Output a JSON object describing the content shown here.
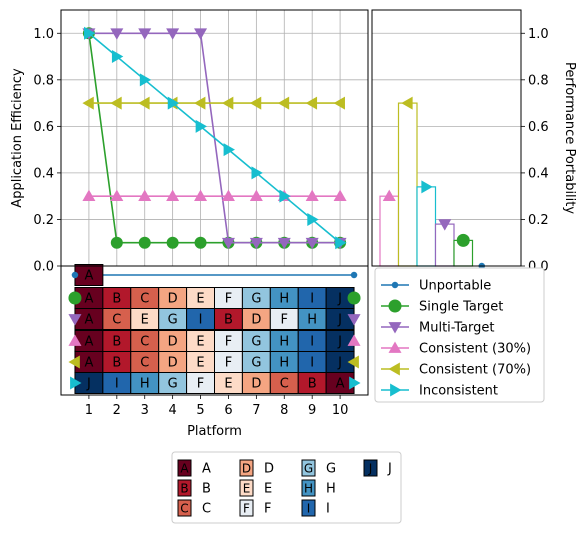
{
  "chart_data": [
    {
      "type": "line",
      "xlabel": "",
      "ylabel": "Application Efficiency",
      "x": [
        1,
        2,
        3,
        4,
        5,
        6,
        7,
        8,
        9,
        10
      ],
      "xlim": [
        0,
        11
      ],
      "ylim": [
        0,
        1.1
      ],
      "yticks": [
        0.0,
        0.2,
        0.4,
        0.6,
        0.8,
        1.0
      ],
      "grid": true,
      "series": [
        {
          "name": "Unportable",
          "color": "#1f77b4",
          "marker": "circle-small",
          "values": [
            1.0,
            null,
            null,
            null,
            null,
            null,
            null,
            null,
            null,
            null
          ]
        },
        {
          "name": "Single Target",
          "color": "#2ca02c",
          "marker": "circle",
          "values": [
            1.0,
            0.1,
            0.1,
            0.1,
            0.1,
            0.1,
            0.1,
            0.1,
            0.1,
            0.1
          ]
        },
        {
          "name": "Multi-Target",
          "color": "#9467bd",
          "marker": "triangle-down",
          "values": [
            1.0,
            1.0,
            1.0,
            1.0,
            1.0,
            0.1,
            0.1,
            0.1,
            0.1,
            0.1
          ]
        },
        {
          "name": "Consistent (30%)",
          "color": "#e377c2",
          "marker": "triangle-up",
          "values": [
            0.3,
            0.3,
            0.3,
            0.3,
            0.3,
            0.3,
            0.3,
            0.3,
            0.3,
            0.3
          ]
        },
        {
          "name": "Consistent (70%)",
          "color": "#bcbd22",
          "marker": "triangle-left",
          "values": [
            0.7,
            0.7,
            0.7,
            0.7,
            0.7,
            0.7,
            0.7,
            0.7,
            0.7,
            0.7
          ]
        },
        {
          "name": "Inconsistent",
          "color": "#17becf",
          "marker": "triangle-right",
          "values": [
            1.0,
            0.9,
            0.8,
            0.7,
            0.6,
            0.5,
            0.4,
            0.3,
            0.2,
            0.1
          ]
        }
      ]
    },
    {
      "type": "bar",
      "ylabel": "Performance Portability",
      "ylim": [
        0,
        1.1
      ],
      "yticks": [
        0.0,
        0.2,
        0.4,
        0.6,
        0.8,
        1.0
      ],
      "grid": true,
      "categories": [
        "Unportable",
        "Single Target",
        "Multi-Target",
        "Consistent (30%)",
        "Consistent (70%)",
        "Inconsistent"
      ],
      "values": [
        0.0,
        0.11,
        0.18,
        0.3,
        0.7,
        0.34
      ]
    },
    {
      "type": "heatmap",
      "xlabel": "Platform",
      "xticks": [
        "1",
        "2",
        "3",
        "4",
        "5",
        "6",
        "7",
        "8",
        "9",
        "10"
      ],
      "rows": [
        {
          "series": "Unportable",
          "cells": [
            "A",
            null,
            null,
            null,
            null,
            null,
            null,
            null,
            null,
            null
          ]
        },
        {
          "series": "Single Target",
          "cells": [
            "A",
            "B",
            "C",
            "D",
            "E",
            "F",
            "G",
            "H",
            "I",
            "J"
          ]
        },
        {
          "series": "Multi-Target",
          "cells": [
            "A",
            "C",
            "E",
            "G",
            "I",
            "B",
            "D",
            "F",
            "H",
            "J"
          ]
        },
        {
          "series": "Consistent (30%)",
          "cells": [
            "A",
            "B",
            "C",
            "D",
            "E",
            "F",
            "G",
            "H",
            "I",
            "J"
          ]
        },
        {
          "series": "Consistent (70%)",
          "cells": [
            "A",
            "B",
            "C",
            "D",
            "E",
            "F",
            "G",
            "H",
            "I",
            "J"
          ]
        },
        {
          "series": "Inconsistent",
          "cells": [
            "J",
            "I",
            "H",
            "G",
            "F",
            "E",
            "D",
            "C",
            "B",
            "A"
          ]
        }
      ]
    }
  ],
  "legend": {
    "placement": "right of matrix",
    "entries": [
      "Unportable",
      "Single Target",
      "Multi-Target",
      "Consistent (30%)",
      "Consistent (70%)",
      "Inconsistent"
    ]
  },
  "code_legend": {
    "placement": "bottom-center",
    "entries": [
      {
        "code": "A",
        "label": "A",
        "color": "#67001f"
      },
      {
        "code": "B",
        "label": "B",
        "color": "#b2182b"
      },
      {
        "code": "C",
        "label": "C",
        "color": "#d6604d"
      },
      {
        "code": "D",
        "label": "D",
        "color": "#f4a582"
      },
      {
        "code": "E",
        "label": "E",
        "color": "#fddbc7"
      },
      {
        "code": "F",
        "label": "F",
        "color": "#e8eef4"
      },
      {
        "code": "G",
        "label": "G",
        "color": "#92c5de"
      },
      {
        "code": "H",
        "label": "H",
        "color": "#4393c3"
      },
      {
        "code": "I",
        "label": "I",
        "color": "#2166ac"
      },
      {
        "code": "J",
        "label": "J",
        "color": "#053061"
      }
    ]
  }
}
